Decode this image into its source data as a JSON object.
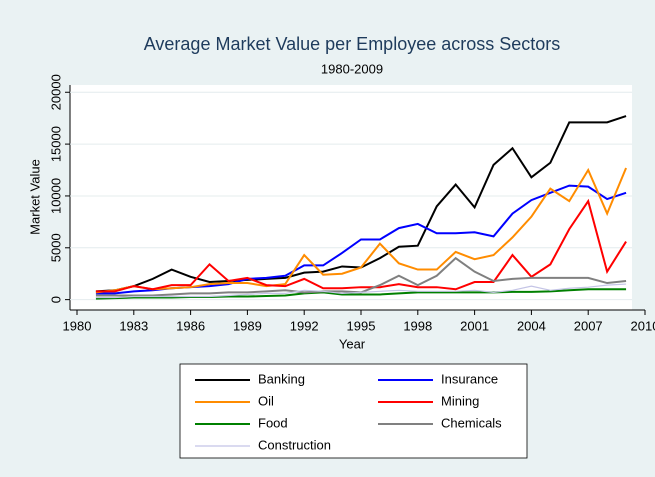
{
  "chart_data": {
    "type": "line",
    "title": "Average Market Value per Employee across Sectors",
    "subtitle": "1980-2009",
    "x_label": "Year",
    "y_label": "Market Value",
    "x": [
      1981,
      1982,
      1983,
      1984,
      1985,
      1986,
      1987,
      1988,
      1989,
      1990,
      1991,
      1992,
      1993,
      1994,
      1995,
      1996,
      1997,
      1998,
      1999,
      2000,
      2001,
      2002,
      2003,
      2004,
      2005,
      2006,
      2007,
      2008,
      2009
    ],
    "xlim": [
      1980,
      2010
    ],
    "xticks": [
      1980,
      1983,
      1986,
      1989,
      1992,
      1995,
      1998,
      2001,
      2004,
      2007,
      2010
    ],
    "ylim": [
      -1000,
      20700
    ],
    "yticks": [
      0,
      5000,
      10000,
      15000,
      20000
    ],
    "grid": true,
    "series": [
      {
        "name": "Banking",
        "color": "#000000",
        "values": [
          800,
          900,
          1300,
          2000,
          2900,
          2200,
          1700,
          1800,
          1900,
          2000,
          2100,
          2600,
          2700,
          3200,
          3100,
          4000,
          5100,
          5200,
          9000,
          11100,
          8900,
          13000,
          14600,
          11800,
          13200,
          17100,
          17100,
          17100,
          17700
        ]
      },
      {
        "name": "Insurance",
        "color": "#0000ff",
        "values": [
          600,
          600,
          800,
          900,
          1100,
          1200,
          1300,
          1500,
          2000,
          2100,
          2300,
          3300,
          3300,
          4500,
          5800,
          5800,
          6900,
          7300,
          6400,
          6400,
          6500,
          6100,
          8300,
          9600,
          10300,
          11000,
          10900,
          9700,
          10300
        ]
      },
      {
        "name": "Oil",
        "color": "#ff8c00",
        "values": [
          700,
          900,
          1300,
          1000,
          1100,
          1200,
          1500,
          1600,
          1600,
          1300,
          1500,
          4300,
          2400,
          2500,
          3100,
          5400,
          3500,
          2900,
          2900,
          4600,
          3900,
          4300,
          6000,
          8000,
          10700,
          9500,
          12500,
          8300,
          12700
        ]
      },
      {
        "name": "Mining",
        "color": "#ff0000",
        "values": [
          800,
          800,
          1300,
          1000,
          1400,
          1400,
          3400,
          1800,
          2100,
          1400,
          1300,
          2000,
          1100,
          1100,
          1200,
          1200,
          1500,
          1200,
          1200,
          1000,
          1700,
          1700,
          4300,
          2200,
          3400,
          6800,
          9500,
          2700,
          5600
        ]
      },
      {
        "name": "Food",
        "color": "#008000",
        "values": [
          100,
          150,
          200,
          200,
          200,
          250,
          250,
          300,
          300,
          350,
          400,
          600,
          700,
          500,
          500,
          500,
          600,
          700,
          700,
          700,
          700,
          700,
          750,
          750,
          800,
          900,
          1000,
          1000,
          1000
        ]
      },
      {
        "name": "Chemicals",
        "color": "#808080",
        "values": [
          400,
          400,
          400,
          400,
          500,
          600,
          600,
          700,
          700,
          800,
          900,
          700,
          800,
          800,
          700,
          1400,
          2300,
          1400,
          2300,
          4000,
          2700,
          1800,
          2000,
          2100,
          2100,
          2100,
          2100,
          1600,
          1800
        ]
      },
      {
        "name": "Construction",
        "color": "#c4c4e6",
        "values": [
          200,
          200,
          300,
          300,
          300,
          300,
          300,
          400,
          500,
          600,
          600,
          900,
          800,
          600,
          700,
          800,
          900,
          800,
          800,
          800,
          900,
          700,
          900,
          1300,
          900,
          1100,
          1200,
          1400,
          1500
        ]
      }
    ]
  }
}
